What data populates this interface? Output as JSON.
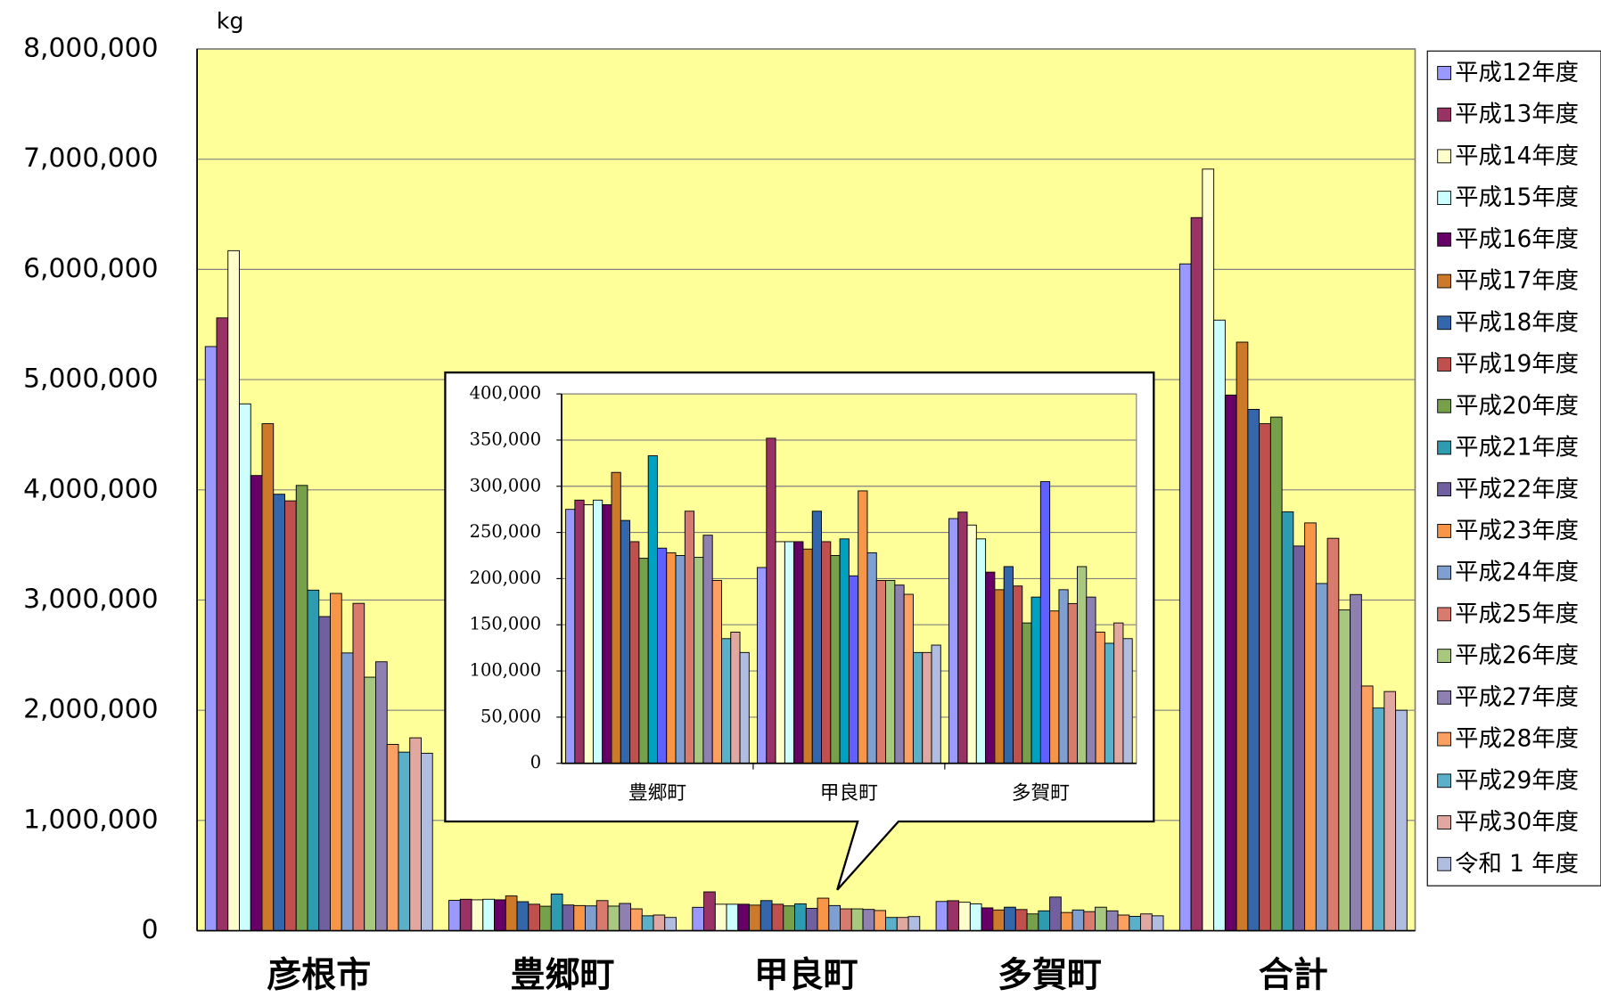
{
  "chart_data": [
    {
      "type": "bar",
      "y_label": "kg",
      "categories": [
        "彦根市",
        "豊郷町",
        "甲良町",
        "多賀町",
        "合計"
      ],
      "ylim": [
        0,
        8000000
      ],
      "yticks": [
        0,
        {
          "value": 1000000,
          "label": "1,000,000"
        },
        {
          "value": 2000000,
          "label": "2,000,000"
        },
        {
          "value": 3000000,
          "label": "3,000,000"
        },
        {
          "value": 4000000,
          "label": "4,000,000"
        },
        {
          "value": 5000000,
          "label": "5,000,000"
        },
        {
          "value": 6000000,
          "label": "6,000,000"
        },
        {
          "value": 7000000,
          "label": "7,000,000"
        },
        {
          "value": 8000000,
          "label": "8,000,000"
        }
      ],
      "grid": true,
      "legend": "right",
      "series": [
        {
          "name": "平成12年度",
          "color": "#9999ff",
          "values": [
            5300000,
            275000,
            212000,
            265000,
            6050000
          ]
        },
        {
          "name": "平成13年度",
          "color": "#993366",
          "values": [
            5560000,
            285000,
            352000,
            272000,
            6470000
          ]
        },
        {
          "name": "平成14年度",
          "color": "#ffffcc",
          "values": [
            6170000,
            280000,
            240000,
            258000,
            6910000
          ]
        },
        {
          "name": "平成15年度",
          "color": "#ccffff",
          "values": [
            4780000,
            285000,
            240000,
            243000,
            5540000
          ]
        },
        {
          "name": "平成16年度",
          "color": "#660066",
          "values": [
            4130000,
            280000,
            240000,
            207000,
            4860000
          ]
        },
        {
          "name": "平成17年度",
          "color": "#cc7a29",
          "values": [
            4600000,
            315000,
            232000,
            188000,
            5340000
          ]
        },
        {
          "name": "平成18年度",
          "color": "#3366aa",
          "values": [
            3960000,
            263000,
            273000,
            213000,
            4730000
          ]
        },
        {
          "name": "平成19年度",
          "color": "#c0504d",
          "values": [
            3900000,
            240000,
            240000,
            192000,
            4600000
          ]
        },
        {
          "name": "平成20年度",
          "color": "#77a04a",
          "values": [
            4040000,
            222000,
            225000,
            152000,
            4660000
          ]
        },
        {
          "name": "平成21年度",
          "color": "#2e9cb0",
          "values": [
            3090000,
            333000,
            243000,
            180000,
            3800000
          ]
        },
        {
          "name": "平成22年度",
          "color": "#7060a0",
          "values": [
            2850000,
            233000,
            203000,
            305000,
            3490000
          ]
        },
        {
          "name": "平成23年度",
          "color": "#f79646",
          "values": [
            3060000,
            228000,
            295000,
            165000,
            3700000
          ]
        },
        {
          "name": "平成24年度",
          "color": "#7f9fd0",
          "values": [
            2520000,
            225000,
            228000,
            188000,
            3150000
          ]
        },
        {
          "name": "平成25年度",
          "color": "#d87a6e",
          "values": [
            2970000,
            273000,
            198000,
            173000,
            3560000
          ]
        },
        {
          "name": "平成26年度",
          "color": "#a8c880",
          "values": [
            2300000,
            223000,
            198000,
            213000,
            2910000
          ]
        },
        {
          "name": "平成27年度",
          "color": "#8e80b0",
          "values": [
            2440000,
            247000,
            193000,
            180000,
            3050000
          ]
        },
        {
          "name": "平成28年度",
          "color": "#fba060",
          "values": [
            1690000,
            198000,
            183000,
            142000,
            2220000
          ]
        },
        {
          "name": "平成29年度",
          "color": "#5ab0c8",
          "values": [
            1620000,
            135000,
            120000,
            130000,
            2020000
          ]
        },
        {
          "name": "平成30年度",
          "color": "#e0a8a0",
          "values": [
            1750000,
            142000,
            120000,
            152000,
            2170000
          ]
        },
        {
          "name": "令和 1 年度",
          "color": "#b0bce0",
          "values": [
            1610000,
            120000,
            128000,
            135000,
            2000000
          ]
        }
      ]
    },
    {
      "type": "bar",
      "categories": [
        "豊郷町",
        "甲良町",
        "多賀町"
      ],
      "ylim": [
        0,
        400000
      ],
      "yticks": [
        0,
        {
          "value": 50000,
          "label": "50,000"
        },
        {
          "value": 100000,
          "label": "100,000"
        },
        {
          "value": 150000,
          "label": "150,000"
        },
        {
          "value": 200000,
          "label": "200,000"
        },
        {
          "value": 250000,
          "label": "250,000"
        },
        {
          "value": 300000,
          "label": "300,000"
        },
        {
          "value": 350000,
          "label": "350,000"
        },
        {
          "value": 400000,
          "label": "400,000"
        }
      ],
      "grid": true,
      "series": [
        {
          "color": "#9999ff",
          "values": [
            275000,
            212000,
            265000
          ]
        },
        {
          "color": "#993366",
          "values": [
            285000,
            352000,
            272000
          ]
        },
        {
          "color": "#ffffcc",
          "values": [
            280000,
            240000,
            258000
          ]
        },
        {
          "color": "#ccffff",
          "values": [
            285000,
            240000,
            243000
          ]
        },
        {
          "color": "#660066",
          "values": [
            280000,
            240000,
            207000
          ]
        },
        {
          "color": "#cc7a29",
          "values": [
            315000,
            232000,
            188000
          ]
        },
        {
          "color": "#3366aa",
          "values": [
            263000,
            273000,
            213000
          ]
        },
        {
          "color": "#c0504d",
          "values": [
            240000,
            240000,
            192000
          ]
        },
        {
          "color": "#77a04a",
          "values": [
            222000,
            225000,
            152000
          ]
        },
        {
          "color": "#00a0c0",
          "values": [
            333000,
            243000,
            180000
          ]
        },
        {
          "color": "#6060ff",
          "values": [
            233000,
            203000,
            305000
          ]
        },
        {
          "color": "#f79646",
          "values": [
            228000,
            295000,
            165000
          ]
        },
        {
          "color": "#7f9fd0",
          "values": [
            225000,
            228000,
            188000
          ]
        },
        {
          "color": "#d87a6e",
          "values": [
            273000,
            198000,
            173000
          ]
        },
        {
          "color": "#a8c880",
          "values": [
            223000,
            198000,
            213000
          ]
        },
        {
          "color": "#8e80b0",
          "values": [
            247000,
            193000,
            180000
          ]
        },
        {
          "color": "#fba060",
          "values": [
            198000,
            183000,
            142000
          ]
        },
        {
          "color": "#5ab0c8",
          "values": [
            135000,
            120000,
            130000
          ]
        },
        {
          "color": "#e0a8a0",
          "values": [
            142000,
            120000,
            152000
          ]
        },
        {
          "color": "#b0bce0",
          "values": [
            120000,
            128000,
            135000
          ]
        }
      ]
    }
  ]
}
